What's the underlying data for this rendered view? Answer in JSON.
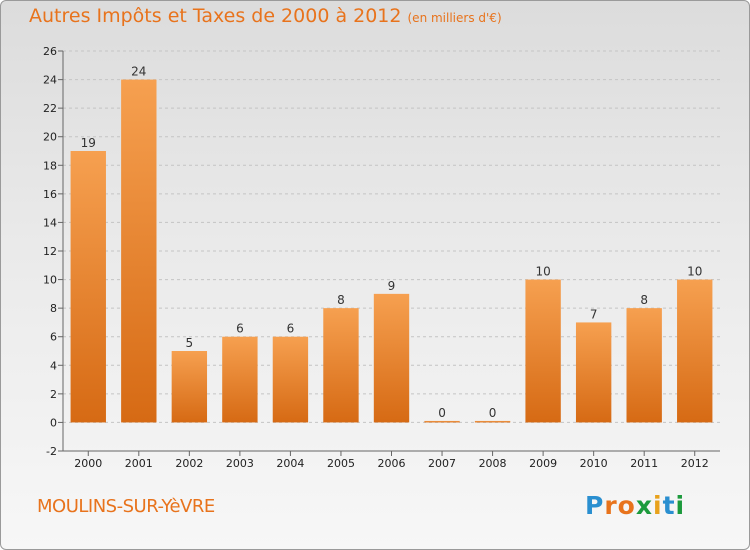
{
  "chart_data": {
    "type": "bar",
    "title": "Autres Impôts et Taxes de 2000 à 2012",
    "subtitle": "(en milliers d'€)",
    "categories": [
      "2000",
      "2001",
      "2002",
      "2003",
      "2004",
      "2005",
      "2006",
      "2007",
      "2008",
      "2009",
      "2010",
      "2011",
      "2012"
    ],
    "values": [
      19,
      24,
      5,
      6,
      6,
      8,
      9,
      0,
      0,
      10,
      7,
      8,
      10
    ],
    "ylim": [
      -2,
      26
    ],
    "yticks": [
      -2,
      0,
      2,
      4,
      6,
      8,
      10,
      12,
      14,
      16,
      18,
      20,
      22,
      24,
      26
    ],
    "grid": true,
    "bar_color": "#f0903a",
    "xlabel": "",
    "ylabel": ""
  },
  "footer": {
    "commune": "MOULINS-SUR-YèVRE",
    "logo_letters": [
      {
        "char": "P",
        "color": "#2a8fd0"
      },
      {
        "char": "r",
        "color": "#e8731c"
      },
      {
        "char": "o",
        "color": "#e8731c"
      },
      {
        "char": "x",
        "color": "#1c9a3c"
      },
      {
        "char": "i",
        "color": "#e8a21c"
      },
      {
        "char": "t",
        "color": "#2a8fd0"
      },
      {
        "char": "i",
        "color": "#1c9a3c"
      }
    ]
  }
}
